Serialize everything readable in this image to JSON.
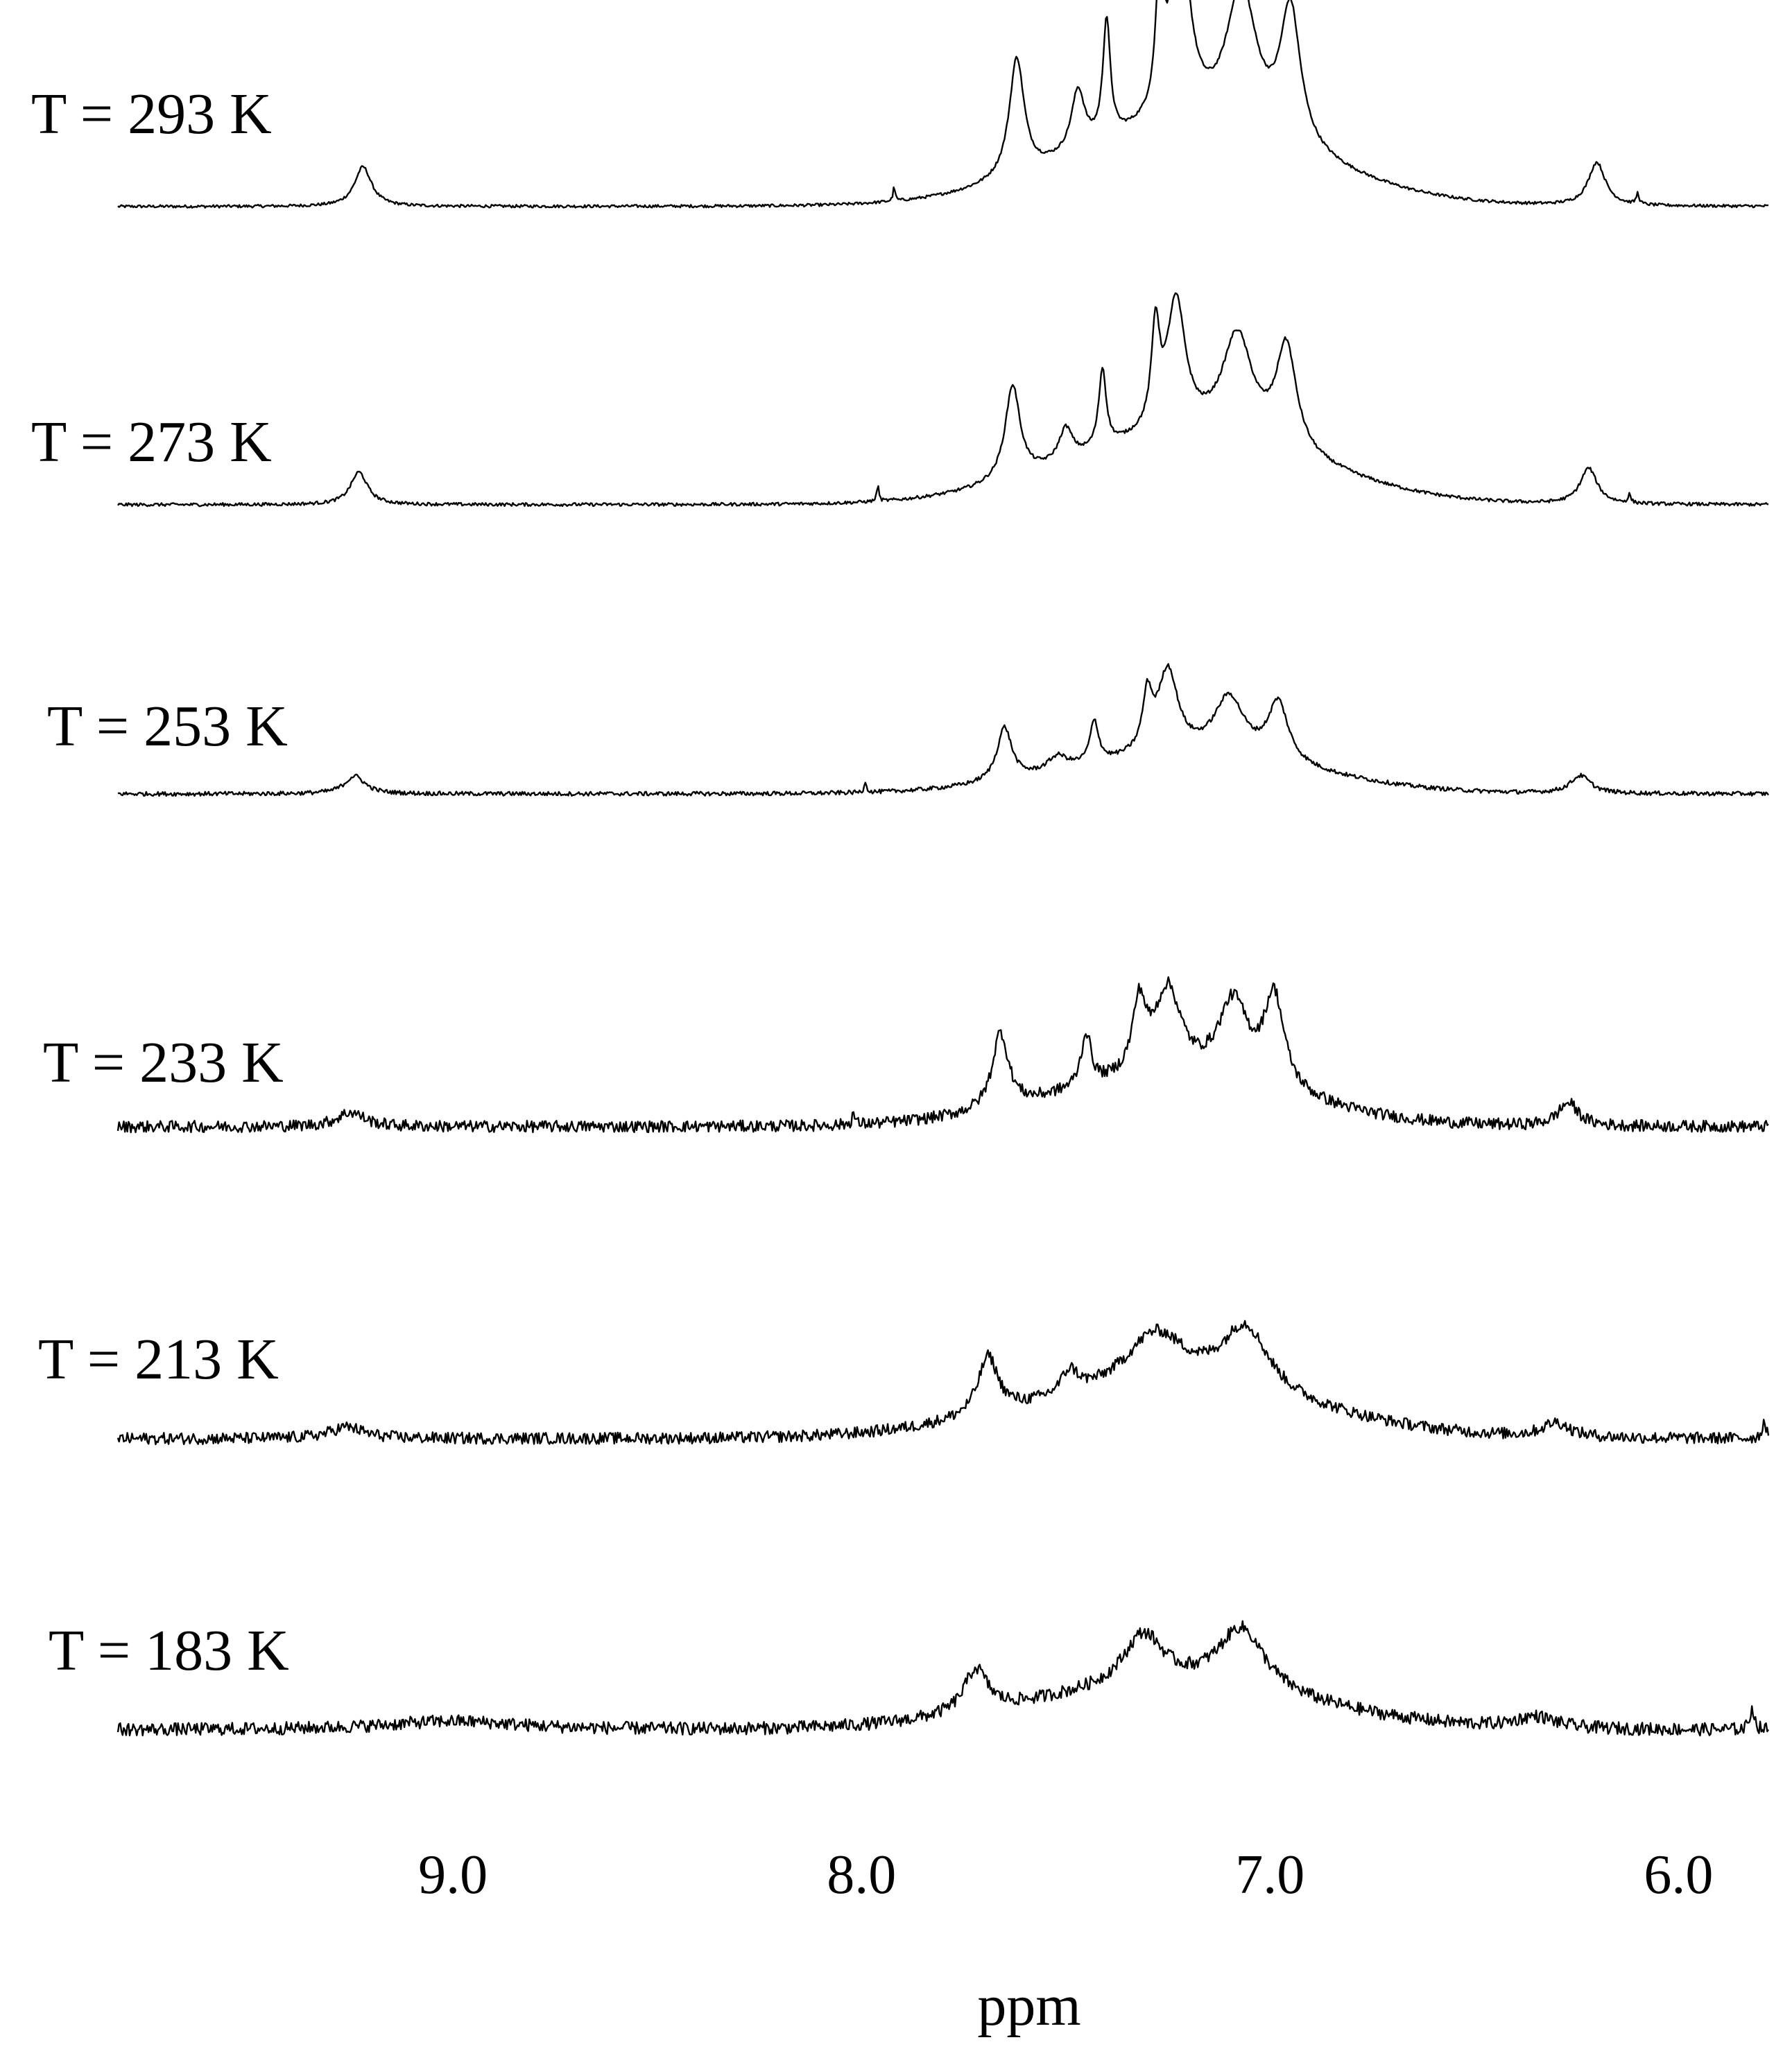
{
  "chart_data": {
    "type": "line",
    "title": "",
    "xlabel": "ppm",
    "ylabel": "",
    "xlim": [
      9.82,
      5.78
    ],
    "x_reversed": true,
    "xticks": [
      9.0,
      8.0,
      7.0,
      6.0
    ],
    "xtick_labels": [
      "9.0",
      "8.0",
      "7.0",
      "6.0"
    ],
    "grid": false,
    "legend": "none",
    "line_color": "#000000",
    "stack_layout": "vertical, one trace per temperature, highest temperature on top",
    "series": [
      {
        "name": "T = 293 K",
        "noise": 0.004,
        "baseline": 0.0,
        "peaks": [
          {
            "ppm": 9.22,
            "height": 0.11,
            "width": 0.025
          },
          {
            "ppm": 7.92,
            "height": 0.04,
            "width": 0.003
          },
          {
            "ppm": 7.62,
            "height": 0.33,
            "width": 0.022
          },
          {
            "ppm": 7.47,
            "height": 0.17,
            "width": 0.02
          },
          {
            "ppm": 7.4,
            "height": 0.33,
            "width": 0.011
          },
          {
            "ppm": 7.27,
            "height": 0.37,
            "width": 0.011
          },
          {
            "ppm": 7.22,
            "height": 0.55,
            "width": 0.028
          },
          {
            "ppm": 7.07,
            "height": 0.4,
            "width": 0.045
          },
          {
            "ppm": 6.95,
            "height": 0.38,
            "width": 0.03
          },
          {
            "ppm": 6.2,
            "height": 0.12,
            "width": 0.025
          },
          {
            "ppm": 6.1,
            "height": 0.03,
            "width": 0.004
          }
        ],
        "broad": [
          {
            "ppm": 7.2,
            "height": 0.2,
            "width": 0.3
          }
        ]
      },
      {
        "name": "T = 273 K",
        "noise": 0.005,
        "baseline": 0.0,
        "peaks": [
          {
            "ppm": 9.23,
            "height": 0.1,
            "width": 0.025
          },
          {
            "ppm": 7.96,
            "height": 0.05,
            "width": 0.003
          },
          {
            "ppm": 7.63,
            "height": 0.29,
            "width": 0.022
          },
          {
            "ppm": 7.5,
            "height": 0.1,
            "width": 0.02
          },
          {
            "ppm": 7.41,
            "height": 0.24,
            "width": 0.011
          },
          {
            "ppm": 7.28,
            "height": 0.3,
            "width": 0.012
          },
          {
            "ppm": 7.23,
            "height": 0.4,
            "width": 0.028
          },
          {
            "ppm": 7.08,
            "height": 0.32,
            "width": 0.045
          },
          {
            "ppm": 6.96,
            "height": 0.32,
            "width": 0.03
          },
          {
            "ppm": 6.22,
            "height": 0.11,
            "width": 0.025
          },
          {
            "ppm": 6.12,
            "height": 0.025,
            "width": 0.004
          }
        ],
        "broad": [
          {
            "ppm": 7.2,
            "height": 0.2,
            "width": 0.3
          }
        ]
      },
      {
        "name": "T = 253 K",
        "noise": 0.007,
        "baseline": 0.0,
        "peaks": [
          {
            "ppm": 9.24,
            "height": 0.06,
            "width": 0.03
          },
          {
            "ppm": 7.99,
            "height": 0.04,
            "width": 0.003
          },
          {
            "ppm": 7.65,
            "height": 0.18,
            "width": 0.022
          },
          {
            "ppm": 7.52,
            "height": 0.05,
            "width": 0.03
          },
          {
            "ppm": 7.43,
            "height": 0.14,
            "width": 0.013
          },
          {
            "ppm": 7.3,
            "height": 0.18,
            "width": 0.014
          },
          {
            "ppm": 7.25,
            "height": 0.28,
            "width": 0.03
          },
          {
            "ppm": 7.1,
            "height": 0.2,
            "width": 0.045
          },
          {
            "ppm": 6.98,
            "height": 0.2,
            "width": 0.03
          },
          {
            "ppm": 6.24,
            "height": 0.06,
            "width": 0.03
          }
        ],
        "broad": [
          {
            "ppm": 7.2,
            "height": 0.12,
            "width": 0.3
          }
        ]
      },
      {
        "name": "T = 233 K",
        "noise": 0.02,
        "baseline": 0.0,
        "peaks": [
          {
            "ppm": 9.25,
            "height": 0.05,
            "width": 0.04
          },
          {
            "ppm": 8.02,
            "height": 0.04,
            "width": 0.004
          },
          {
            "ppm": 7.66,
            "height": 0.26,
            "width": 0.024
          },
          {
            "ppm": 7.45,
            "height": 0.18,
            "width": 0.015
          },
          {
            "ppm": 7.32,
            "height": 0.24,
            "width": 0.02
          },
          {
            "ppm": 7.25,
            "height": 0.3,
            "width": 0.04
          },
          {
            "ppm": 7.09,
            "height": 0.28,
            "width": 0.045
          },
          {
            "ppm": 6.99,
            "height": 0.32,
            "width": 0.03
          },
          {
            "ppm": 6.27,
            "height": 0.08,
            "width": 0.03
          }
        ],
        "broad": [
          {
            "ppm": 7.25,
            "height": 0.15,
            "width": 0.3
          }
        ]
      },
      {
        "name": "T = 213 K",
        "noise": 0.02,
        "baseline": 0.0,
        "peaks": [
          {
            "ppm": 9.26,
            "height": 0.04,
            "width": 0.05
          },
          {
            "ppm": 7.69,
            "height": 0.2,
            "width": 0.03
          },
          {
            "ppm": 7.49,
            "height": 0.08,
            "width": 0.025
          },
          {
            "ppm": 7.28,
            "height": 0.19,
            "width": 0.09
          },
          {
            "ppm": 7.06,
            "height": 0.23,
            "width": 0.07
          },
          {
            "ppm": 6.3,
            "height": 0.05,
            "width": 0.04
          },
          {
            "ppm": 5.79,
            "height": 0.06,
            "width": 0.006
          }
        ],
        "broad": [
          {
            "ppm": 7.25,
            "height": 0.16,
            "width": 0.35
          }
        ]
      },
      {
        "name": "T = 183 K",
        "noise": 0.022,
        "baseline": 0.0,
        "peaks": [
          {
            "ppm": 9.0,
            "height": 0.03,
            "width": 0.2
          },
          {
            "ppm": 7.72,
            "height": 0.15,
            "width": 0.035
          },
          {
            "ppm": 7.31,
            "height": 0.18,
            "width": 0.06
          },
          {
            "ppm": 7.07,
            "height": 0.22,
            "width": 0.07
          },
          {
            "ppm": 6.35,
            "height": 0.04,
            "width": 0.06
          },
          {
            "ppm": 5.82,
            "height": 0.08,
            "width": 0.006
          }
        ],
        "broad": [
          {
            "ppm": 7.25,
            "height": 0.14,
            "width": 0.35
          }
        ]
      }
    ]
  }
}
